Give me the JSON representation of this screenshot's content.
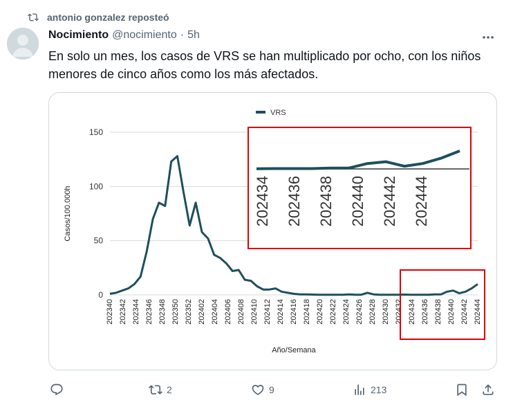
{
  "repost": {
    "text": "antonio gonzalez reposteó",
    "icon": "repost-icon"
  },
  "post": {
    "author_name": "Nocimiento",
    "handle": "@nocimiento",
    "separator": "·",
    "time": "5h",
    "text": "En solo un mes, los casos de VRS se han multiplicado por ocho, con los niños menores de cinco años como los más afectados."
  },
  "chart_data": {
    "type": "line",
    "legend": "VRS",
    "xlabel": "Año/Semana",
    "ylabel": "Casos/100.000h",
    "ylim": [
      0,
      150
    ],
    "yticks": [
      "0",
      "50",
      "100",
      "150"
    ],
    "x_ticks": [
      "202340",
      "202342",
      "202344",
      "202346",
      "202348",
      "202350",
      "202352",
      "202402",
      "202404",
      "202406",
      "202408",
      "202410",
      "202412",
      "202414",
      "202416",
      "202418",
      "202420",
      "202422",
      "202424",
      "202426",
      "202428",
      "202430",
      "202432",
      "202434",
      "202436",
      "202438",
      "202440",
      "202442",
      "202444"
    ],
    "series": [
      {
        "name": "VRS",
        "color": "#1e4f5c",
        "values": [
          1,
          2,
          4,
          6,
          10,
          17,
          40,
          70,
          85,
          82,
          123,
          128,
          95,
          64,
          85,
          58,
          52,
          37,
          34,
          29,
          22,
          23,
          14,
          13,
          8,
          5,
          5,
          6,
          3,
          2,
          1,
          0.5,
          0.5,
          0.3,
          0.2,
          0.2,
          0.2,
          0.2,
          0.2,
          0.5,
          0.2,
          0.2,
          2,
          0.5,
          0.2,
          0.2,
          0.2,
          0.2,
          0.3,
          0.1,
          0.2,
          0.2,
          0.2,
          0.5,
          0.5,
          3,
          4,
          1.5,
          3,
          6,
          10
        ]
      }
    ],
    "zoom_inset": {
      "x_ticks": [
        "202434",
        "202436",
        "202438",
        "202440",
        "202442",
        "202444"
      ],
      "highlight_color": "#e00000"
    }
  },
  "actions": {
    "reply_count": "",
    "repost_count": "2",
    "like_count": "9",
    "views_count": "213"
  }
}
